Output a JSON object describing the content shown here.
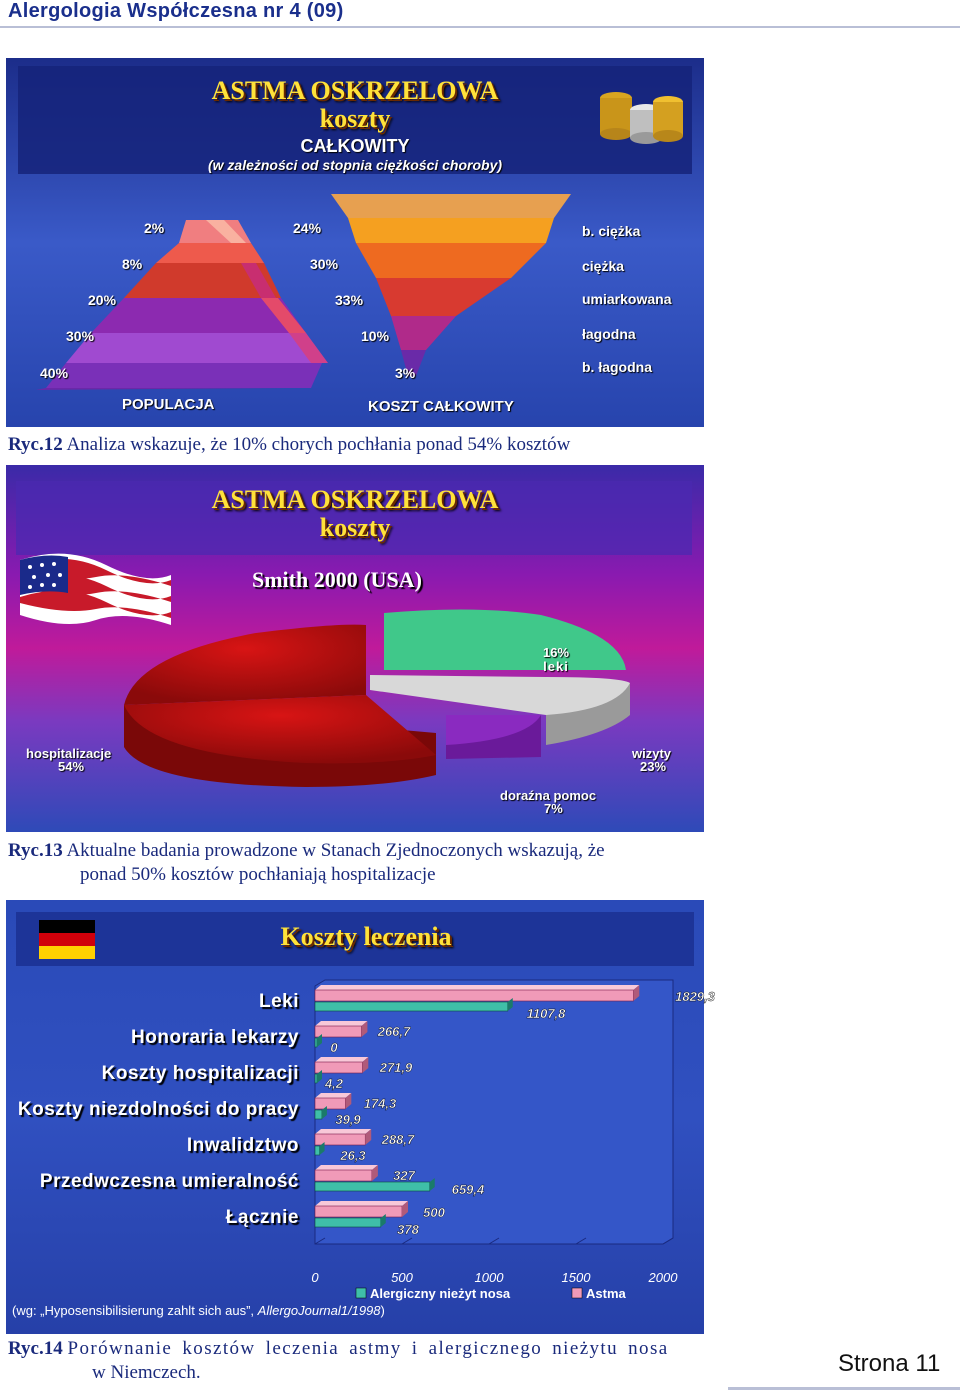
{
  "header": {
    "title": "Alergologia Współczesna nr 4 (09)"
  },
  "figure12": {
    "title_line1": "ASTMA OSKRZELOWA",
    "title_line2": "koszty",
    "subtitle": "CAŁKOWITY",
    "subtitle_note": "(w zależności od stopnia ciężkości choroby)",
    "left_axis_label": "POPULACJA",
    "right_axis_label": "KOSZT CAŁKOWITY",
    "levels": [
      {
        "name": "b. ciężka",
        "population": "2%",
        "cost": "24%"
      },
      {
        "name": "ciężka",
        "population": "8%",
        "cost": "30%"
      },
      {
        "name": "umiarkowana",
        "population": "20%",
        "cost": "33%"
      },
      {
        "name": "łagodna",
        "population": "30%",
        "cost": "10%"
      },
      {
        "name": "b. łagodna",
        "population": "40%",
        "cost": "3%"
      }
    ],
    "caption_label": "Ryc.12",
    "caption_text": "Analiza wskazuje, że 10% chorych pochłania ponad 54% kosztów"
  },
  "figure13": {
    "title_line1": "ASTMA OSKRZELOWA",
    "title_line2": "koszty",
    "source": "Smith 2000 (USA)",
    "slices": [
      {
        "name": "leki",
        "value": "16%"
      },
      {
        "name": "wizyty",
        "value": "23%"
      },
      {
        "name": "doraźna pomoc",
        "value": "7%"
      },
      {
        "name": "hospitalizacje",
        "value": "54%"
      }
    ],
    "caption_label": "Ryc.13",
    "caption_line1": "Aktualne badania prowadzone w Stanach Zjednoczonych wskazują, że",
    "caption_line2": "ponad 50% kosztów pochłaniają hospitalizacje"
  },
  "figure14": {
    "title": "Koszty leczenia",
    "footnote_prefix": "(wg: „Hyposensibilisierung zahlt sich aus”, ",
    "footnote_italic": "AllergoJournal1/1998",
    "footnote_suffix": ")",
    "caption_label": "Ryc.14",
    "caption_line1": "Porównanie kosztów leczenia astmy i alergicznego nieżytu nosa",
    "caption_line2": "w Niemczech."
  },
  "chart_data": {
    "type": "bar",
    "orientation": "horizontal",
    "categories": [
      "Leki",
      "Honoraria lekarzy",
      "Koszty hospitalizacji",
      "Koszty niezdolności do pracy",
      "Inwalidztwo",
      "Przedwczesna umieralność",
      "Łącznie"
    ],
    "series": [
      {
        "name": "Alergiczny nieżyt nosa",
        "values": [
          1107.8,
          0,
          4.2,
          39.9,
          26.3,
          659.4,
          378
        ],
        "labels": [
          "1107,8",
          "0",
          "4,2",
          "39,9",
          "26,3",
          "659,4",
          "378"
        ],
        "color": "#3fbfa8"
      },
      {
        "name": "Astma",
        "values": [
          1829.3,
          266.7,
          271.9,
          174.3,
          288.7,
          327,
          500
        ],
        "labels": [
          "1829,3",
          "266,7",
          "271,9",
          "174,3",
          "288,7",
          "327",
          "500"
        ],
        "color": "#f09ab8"
      }
    ],
    "x_ticks": [
      "0",
      "500",
      "1000",
      "1500",
      "2000"
    ],
    "xlim": [
      0,
      2000
    ],
    "legend_position": "bottom"
  },
  "page_number": "Strona 11"
}
